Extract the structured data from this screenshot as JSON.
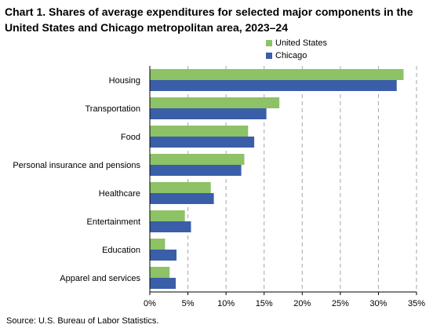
{
  "title": "Chart 1. Shares of average expenditures for selected major components in the United States and Chicago metropolitan area, 2023–24",
  "source": "Source: U.S. Bureau of Labor Statistics.",
  "colors": {
    "united_states": "#8dc266",
    "chicago": "#3a5ea8",
    "grid": "#a6a6a6",
    "axis": "#000000"
  },
  "chart_data": {
    "type": "bar",
    "orientation": "horizontal",
    "categories": [
      "Housing",
      "Transportation",
      "Food",
      "Personal insurance and pensions",
      "Healthcare",
      "Entertainment",
      "Education",
      "Apparel and services"
    ],
    "series": [
      {
        "name": "United States",
        "color": "#8dc266",
        "values": [
          33.3,
          17.0,
          12.9,
          12.4,
          8.0,
          4.6,
          2.0,
          2.6
        ]
      },
      {
        "name": "Chicago",
        "color": "#3a5ea8",
        "values": [
          32.4,
          15.3,
          13.7,
          12.0,
          8.4,
          5.4,
          3.5,
          3.4
        ]
      }
    ],
    "xlim": [
      0,
      35
    ],
    "xticks": [
      "0%",
      "5%",
      "10%",
      "15%",
      "20%",
      "25%",
      "30%",
      "35%"
    ],
    "xlabel": "",
    "ylabel": "",
    "grid": "vertical dashed",
    "legend": "top-right"
  }
}
